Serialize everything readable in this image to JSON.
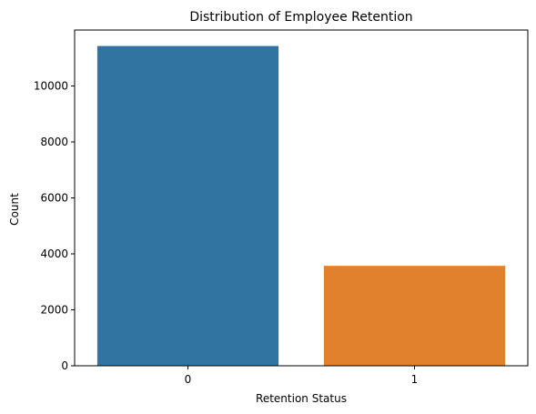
{
  "chart_data": {
    "type": "bar",
    "title": "Distribution of Employee Retention",
    "xlabel": "Retention Status",
    "ylabel": "Count",
    "categories": [
      "0",
      "1"
    ],
    "values": [
      11428,
      3571
    ],
    "colors": [
      "#3274a1",
      "#e1812c"
    ],
    "ylim": [
      0,
      11999
    ],
    "yticks": [
      0,
      2000,
      4000,
      6000,
      8000,
      10000
    ],
    "grid": false,
    "legend": "none"
  }
}
